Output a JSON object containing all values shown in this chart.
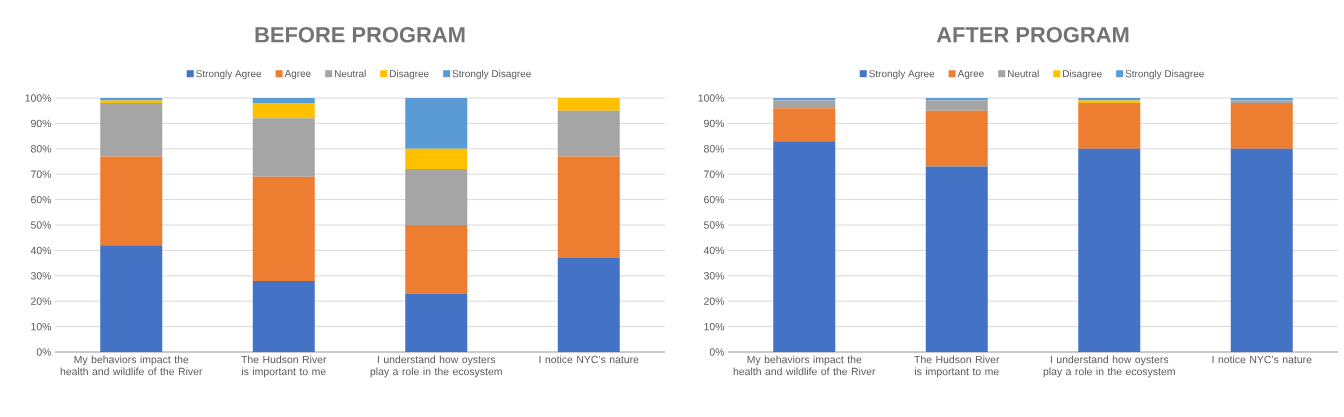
{
  "chart_data": [
    {
      "type": "bar",
      "stacked": true,
      "title": "BEFORE PROGRAM",
      "legend": "top",
      "grid": "y",
      "categories": [
        "My behaviors impact the health and wildlife of the River",
        "The Hudson River is important to me",
        "I understand how oysters play a role in the ecosystem",
        "I notice NYC’s nature"
      ],
      "ylim": [
        0,
        100
      ],
      "yticks": [
        {
          "value": 0,
          "label": "0%"
        },
        {
          "value": 10,
          "label": "10%"
        },
        {
          "value": 20,
          "label": "20%"
        },
        {
          "value": 30,
          "label": "30%"
        },
        {
          "value": 40,
          "label": "40%"
        },
        {
          "value": 50,
          "label": "50%"
        },
        {
          "value": 60,
          "label": "60%"
        },
        {
          "value": 70,
          "label": "70%"
        },
        {
          "value": 80,
          "label": "80%"
        },
        {
          "value": 90,
          "label": "90%"
        },
        {
          "value": 100,
          "label": "100%"
        }
      ],
      "series": [
        {
          "name": "Strongly Agree",
          "color": "#4472c4",
          "values": [
            42,
            28,
            23,
            37
          ]
        },
        {
          "name": "Agree",
          "color": "#ed7d31",
          "values": [
            35,
            41,
            27,
            40
          ]
        },
        {
          "name": "Neutral",
          "color": "#a5a5a5",
          "values": [
            21,
            23,
            22,
            18
          ]
        },
        {
          "name": "Disagree",
          "color": "#ffc000",
          "values": [
            1,
            6,
            8,
            5
          ]
        },
        {
          "name": "Strongly Disagree",
          "color": "#5b9bd5",
          "values": [
            1,
            2,
            20,
            0
          ]
        }
      ]
    },
    {
      "type": "bar",
      "stacked": true,
      "title": "AFTER PROGRAM",
      "legend": "top",
      "grid": "y",
      "categories": [
        "My behaviors impact the health and wildlife of the River",
        "The Hudson River is important to me",
        "I understand how oysters play a role in the ecosystem",
        "I notice NYC’s nature"
      ],
      "ylim": [
        0,
        100
      ],
      "yticks": [
        {
          "value": 0,
          "label": "0%"
        },
        {
          "value": 10,
          "label": "10%"
        },
        {
          "value": 20,
          "label": "20%"
        },
        {
          "value": 30,
          "label": "30%"
        },
        {
          "value": 40,
          "label": "40%"
        },
        {
          "value": 50,
          "label": "50%"
        },
        {
          "value": 60,
          "label": "60%"
        },
        {
          "value": 70,
          "label": "70%"
        },
        {
          "value": 80,
          "label": "80%"
        },
        {
          "value": 90,
          "label": "90%"
        },
        {
          "value": 100,
          "label": "100%"
        }
      ],
      "series": [
        {
          "name": "Strongly Agree",
          "color": "#4472c4",
          "values": [
            83,
            73,
            80,
            80
          ]
        },
        {
          "name": "Agree",
          "color": "#ed7d31",
          "values": [
            13,
            22,
            18,
            18
          ]
        },
        {
          "name": "Neutral",
          "color": "#a5a5a5",
          "values": [
            3,
            4,
            0,
            1
          ]
        },
        {
          "name": "Disagree",
          "color": "#ffc000",
          "values": [
            0,
            0,
            1,
            0
          ]
        },
        {
          "name": "Strongly Disagree",
          "color": "#5b9bd5",
          "values": [
            1,
            1,
            1,
            1
          ]
        }
      ]
    }
  ]
}
